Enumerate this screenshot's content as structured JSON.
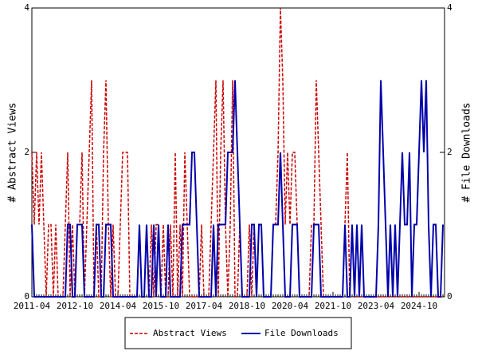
{
  "chart_data": {
    "type": "line",
    "y_label": "# Abstract Views",
    "y2_label": "# File Downloads",
    "categories": [
      "2011-04",
      null,
      null,
      null,
      null,
      null,
      null,
      null,
      null,
      null,
      null,
      null,
      null,
      null,
      null,
      null,
      null,
      null,
      "2012-10",
      null,
      null,
      null,
      null,
      null,
      null,
      null,
      null,
      null,
      null,
      null,
      null,
      null,
      null,
      null,
      null,
      null,
      "2014-04",
      null,
      null,
      null,
      null,
      null,
      null,
      null,
      null,
      null,
      null,
      null,
      null,
      null,
      null,
      null,
      null,
      null,
      "2015-10",
      null,
      null,
      null,
      null,
      null,
      null,
      null,
      null,
      null,
      null,
      null,
      null,
      null,
      null,
      null,
      null,
      null,
      "2017-04",
      null,
      null,
      null,
      null,
      null,
      null,
      null,
      null,
      null,
      null,
      null,
      null,
      null,
      null,
      null,
      null,
      null,
      "2018-10",
      null,
      null,
      null,
      null,
      null,
      null,
      null,
      null,
      null,
      null,
      null,
      null,
      null,
      null,
      null,
      null,
      null,
      "2020-04",
      null,
      null,
      null,
      null,
      null,
      null,
      null,
      null,
      null,
      null,
      null,
      null,
      null,
      null,
      null,
      null,
      null,
      "2021-10",
      null,
      null,
      null,
      null,
      null,
      null,
      null,
      null,
      null,
      null,
      null,
      null,
      null,
      null,
      null,
      null,
      null,
      "2023-04",
      null,
      null,
      null,
      null,
      null,
      null,
      null,
      null,
      null,
      null,
      null,
      null,
      null,
      null,
      null,
      null,
      null,
      "2024-10",
      null,
      null,
      null,
      null,
      null,
      null,
      null,
      null,
      null,
      null
    ],
    "series": [
      {
        "name": "Abstract Views",
        "color": "#cc0000",
        "dashed": true,
        "values": [
          2,
          1,
          2,
          1,
          2,
          1,
          0,
          1,
          1,
          0,
          1,
          0,
          0,
          0,
          1,
          2,
          0,
          1,
          0,
          1,
          1,
          2,
          0,
          1,
          2,
          3,
          0,
          1,
          0,
          0,
          2,
          3,
          1,
          0,
          1,
          0,
          0,
          1,
          2,
          2,
          2,
          0,
          0,
          0,
          0,
          1,
          0,
          0,
          1,
          0,
          1,
          0,
          1,
          1,
          0,
          1,
          0,
          0,
          1,
          0,
          2,
          0,
          1,
          0,
          2,
          1,
          0,
          0,
          0,
          0,
          0,
          1,
          0,
          0,
          0,
          1,
          2,
          3,
          0,
          2,
          3,
          1,
          0,
          1,
          3,
          0,
          0,
          1,
          0,
          0,
          0,
          1,
          0,
          1,
          0,
          1,
          1,
          0,
          0,
          0,
          0,
          1,
          1,
          2,
          4,
          3,
          1,
          2,
          1,
          2,
          2,
          1,
          0,
          0,
          0,
          0,
          0,
          1,
          1,
          3,
          2,
          1,
          0,
          0,
          0,
          0,
          0,
          0,
          0,
          0,
          0,
          1,
          2,
          0,
          1,
          0,
          0,
          0,
          0,
          0,
          0,
          0,
          0,
          0,
          0,
          0,
          0,
          0,
          0,
          0,
          0,
          0,
          0,
          0,
          0,
          0,
          0,
          0,
          0,
          0,
          0,
          0,
          0,
          0,
          0,
          0,
          0,
          0,
          0,
          0,
          0,
          0,
          0
        ]
      },
      {
        "name": "File Downloads",
        "color": "#0000aa",
        "dashed": false,
        "axis": "y2",
        "values": [
          1,
          0,
          0,
          0,
          0,
          0,
          0,
          0,
          0,
          0,
          0,
          0,
          0,
          0,
          0,
          1,
          1,
          0,
          0,
          1,
          1,
          1,
          0,
          0,
          0,
          0,
          0,
          1,
          1,
          0,
          0,
          1,
          1,
          1,
          0,
          0,
          0,
          0,
          0,
          0,
          0,
          0,
          0,
          0,
          0,
          1,
          0,
          0,
          1,
          0,
          0,
          1,
          0,
          1,
          0,
          0,
          0,
          1,
          0,
          0,
          0,
          0,
          0,
          1,
          1,
          1,
          1,
          2,
          2,
          1,
          0,
          0,
          0,
          0,
          0,
          0,
          1,
          0,
          1,
          1,
          1,
          1,
          2,
          2,
          2,
          3,
          2,
          1,
          0,
          0,
          0,
          0,
          1,
          1,
          0,
          1,
          1,
          0,
          0,
          0,
          0,
          1,
          1,
          1,
          2,
          1,
          0,
          0,
          0,
          1,
          1,
          1,
          0,
          0,
          0,
          0,
          0,
          0,
          1,
          1,
          1,
          0,
          0,
          0,
          0,
          0,
          0,
          0,
          0,
          0,
          0,
          1,
          0,
          0,
          1,
          0,
          1,
          0,
          1,
          0,
          0,
          0,
          0,
          0,
          0,
          1,
          3,
          2,
          1,
          0,
          1,
          0,
          1,
          0,
          1,
          2,
          1,
          1,
          2,
          0,
          1,
          1,
          2,
          3,
          2,
          3,
          1,
          0,
          1,
          1,
          0,
          0,
          1
        ]
      }
    ],
    "ylim": [
      0,
      4
    ],
    "yticks": [
      0,
      2,
      4
    ],
    "y2lim": [
      0,
      4
    ],
    "y2ticks": [
      0,
      2,
      4
    ]
  }
}
